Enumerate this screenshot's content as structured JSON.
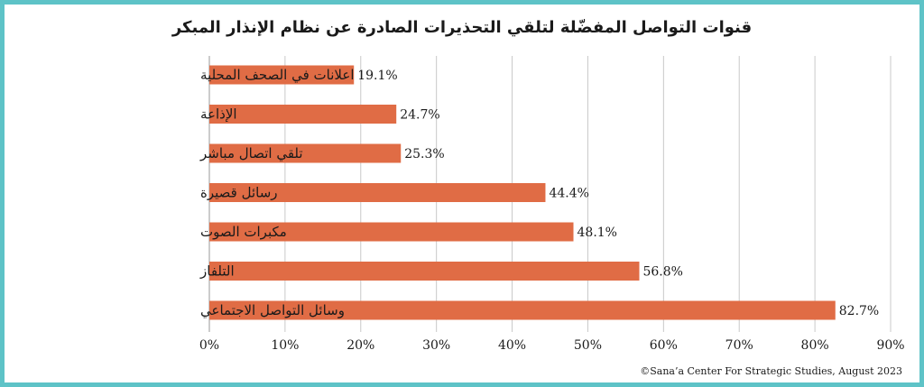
{
  "chart_data": {
    "type": "bar",
    "orientation": "horizontal",
    "title": "قنوات التواصل المفضّلة لتلقي التحذيرات الصادرة عن نظام الإنذار المبكر",
    "categories": [
      "اعلانات في الصحف المحلية",
      "الإذاعة",
      "تلقي اتصال مباشر",
      "رسائل قصيرة",
      "مكبرات الصوت",
      "التلفاز",
      "وسائل التواصل الاجتماعي"
    ],
    "values": [
      19.1,
      24.7,
      25.3,
      44.4,
      48.1,
      56.8,
      82.7
    ],
    "value_labels": [
      "19.1%",
      "24.7%",
      "25.3%",
      "44.4%",
      "48.1%",
      "56.8%",
      "82.7%"
    ],
    "xlim": [
      0,
      90
    ],
    "x_ticks": [
      "0%",
      "10%",
      "20%",
      "30%",
      "40%",
      "50%",
      "60%",
      "70%",
      "80%",
      "90%"
    ],
    "grid": true,
    "bar_color": "#e06c45",
    "frame_color": "#5ec3c7"
  },
  "credit": "©Sana’a Center For Strategic Studies, August 2023"
}
